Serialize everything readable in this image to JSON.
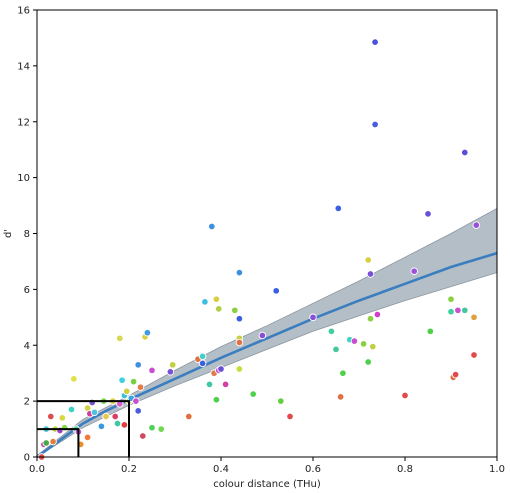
{
  "chart_data": {
    "type": "scatter",
    "title": "",
    "xlabel": "colour distance (THu)",
    "ylabel": "d'",
    "xlim": [
      0,
      1.0
    ],
    "ylim": [
      0,
      16
    ],
    "xticks": [
      "0.0",
      "0.2",
      "0.4",
      "0.6",
      "0.8",
      "1.0"
    ],
    "yticks": [
      "0",
      "2",
      "4",
      "6",
      "8",
      "10",
      "12",
      "14",
      "16"
    ],
    "grid": false,
    "fit_line": {
      "color": "#3a7ebf",
      "x": [
        0.0,
        0.05,
        0.1,
        0.15,
        0.2,
        0.3,
        0.4,
        0.5,
        0.6,
        0.7,
        0.8,
        0.9,
        1.0
      ],
      "y": [
        0.0,
        0.6,
        1.2,
        1.65,
        2.05,
        2.8,
        3.55,
        4.25,
        4.95,
        5.6,
        6.2,
        6.8,
        7.3
      ]
    },
    "ci_band": {
      "color": "#a7b3bd",
      "x": [
        0.0,
        0.1,
        0.2,
        0.3,
        0.4,
        0.5,
        0.6,
        0.7,
        0.8,
        0.9,
        1.0
      ],
      "lower": [
        0.0,
        1.05,
        1.85,
        2.55,
        3.2,
        3.85,
        4.5,
        5.05,
        5.6,
        6.1,
        6.6
      ],
      "upper": [
        0.05,
        1.35,
        2.2,
        3.1,
        3.95,
        4.7,
        5.5,
        6.3,
        7.15,
        8.0,
        8.9
      ]
    },
    "reference_boxes": [
      {
        "x": 0.2,
        "y": 2.0
      },
      {
        "x": 0.09,
        "y": 1.0
      }
    ],
    "points": [
      {
        "x": 0.01,
        "y": 0.0,
        "color": "#e04a4a"
      },
      {
        "x": 0.015,
        "y": 0.45,
        "color": "#cf3fb0"
      },
      {
        "x": 0.02,
        "y": 0.5,
        "color": "#4aa84a"
      },
      {
        "x": 0.02,
        "y": 1.0,
        "color": "#46c7d4"
      },
      {
        "x": 0.03,
        "y": 1.45,
        "color": "#d94f4f"
      },
      {
        "x": 0.035,
        "y": 0.55,
        "color": "#e57e3a"
      },
      {
        "x": 0.04,
        "y": 1.0,
        "color": "#c7d93b"
      },
      {
        "x": 0.05,
        "y": 0.95,
        "color": "#a23ec8"
      },
      {
        "x": 0.055,
        "y": 1.4,
        "color": "#d8d83f"
      },
      {
        "x": 0.06,
        "y": 1.05,
        "color": "#7fdc44"
      },
      {
        "x": 0.075,
        "y": 1.7,
        "color": "#3fd1c4"
      },
      {
        "x": 0.08,
        "y": 2.8,
        "color": "#e0e04a"
      },
      {
        "x": 0.085,
        "y": 1.0,
        "color": "#4fd08f"
      },
      {
        "x": 0.09,
        "y": 0.9,
        "color": "#c84fd8"
      },
      {
        "x": 0.095,
        "y": 0.45,
        "color": "#e8902a"
      },
      {
        "x": 0.11,
        "y": 1.75,
        "color": "#d0d040"
      },
      {
        "x": 0.11,
        "y": 0.7,
        "color": "#f07a3a"
      },
      {
        "x": 0.115,
        "y": 1.55,
        "color": "#cf3f98"
      },
      {
        "x": 0.12,
        "y": 1.95,
        "color": "#7a4fd8"
      },
      {
        "x": 0.125,
        "y": 1.6,
        "color": "#50c0e0"
      },
      {
        "x": 0.14,
        "y": 1.1,
        "color": "#3a9ae0"
      },
      {
        "x": 0.145,
        "y": 2.0,
        "color": "#6fd84f"
      },
      {
        "x": 0.15,
        "y": 1.45,
        "color": "#e7c84a"
      },
      {
        "x": 0.165,
        "y": 2.0,
        "color": "#d8d040"
      },
      {
        "x": 0.17,
        "y": 1.45,
        "color": "#d83f60"
      },
      {
        "x": 0.175,
        "y": 1.2,
        "color": "#40c8a0"
      },
      {
        "x": 0.18,
        "y": 1.9,
        "color": "#df5fc8"
      },
      {
        "x": 0.18,
        "y": 4.25,
        "color": "#d7d84a"
      },
      {
        "x": 0.185,
        "y": 2.75,
        "color": "#3ed0e0"
      },
      {
        "x": 0.19,
        "y": 1.15,
        "color": "#e04040"
      },
      {
        "x": 0.19,
        "y": 2.2,
        "color": "#3fbfd8"
      },
      {
        "x": 0.195,
        "y": 2.35,
        "color": "#d0d040"
      },
      {
        "x": 0.2,
        "y": 2.0,
        "color": "#e6e04a"
      },
      {
        "x": 0.205,
        "y": 2.1,
        "color": "#3aa0e0"
      },
      {
        "x": 0.21,
        "y": 2.7,
        "color": "#7acf40"
      },
      {
        "x": 0.215,
        "y": 2.0,
        "color": "#c84fd0"
      },
      {
        "x": 0.22,
        "y": 1.65,
        "color": "#4a5be0"
      },
      {
        "x": 0.22,
        "y": 3.3,
        "color": "#3e8fe0"
      },
      {
        "x": 0.225,
        "y": 2.5,
        "color": "#e87a4a"
      },
      {
        "x": 0.23,
        "y": 0.75,
        "color": "#d04a60"
      },
      {
        "x": 0.235,
        "y": 4.3,
        "color": "#d8d040"
      },
      {
        "x": 0.24,
        "y": 4.45,
        "color": "#3f9be0"
      },
      {
        "x": 0.25,
        "y": 3.1,
        "color": "#c84fd0"
      },
      {
        "x": 0.25,
        "y": 1.05,
        "color": "#4fd05a"
      },
      {
        "x": 0.27,
        "y": 1.0,
        "color": "#6fd84f"
      },
      {
        "x": 0.29,
        "y": 3.05,
        "color": "#7a4fd8"
      },
      {
        "x": 0.295,
        "y": 3.3,
        "color": "#c0d040"
      },
      {
        "x": 0.33,
        "y": 1.45,
        "color": "#e07040"
      },
      {
        "x": 0.35,
        "y": 3.5,
        "color": "#e07040"
      },
      {
        "x": 0.36,
        "y": 3.6,
        "color": "#3fd0c8"
      },
      {
        "x": 0.36,
        "y": 3.35,
        "color": "#3a5fe0"
      },
      {
        "x": 0.365,
        "y": 5.55,
        "color": "#3fbfe0"
      },
      {
        "x": 0.375,
        "y": 2.6,
        "color": "#40c8a0"
      },
      {
        "x": 0.38,
        "y": 8.25,
        "color": "#3f8fe0"
      },
      {
        "x": 0.385,
        "y": 3.0,
        "color": "#e07a4a"
      },
      {
        "x": 0.39,
        "y": 2.05,
        "color": "#4fd04a"
      },
      {
        "x": 0.39,
        "y": 5.65,
        "color": "#d8d040"
      },
      {
        "x": 0.395,
        "y": 5.3,
        "color": "#b0d040"
      },
      {
        "x": 0.395,
        "y": 3.1,
        "color": "#c84fd0"
      },
      {
        "x": 0.4,
        "y": 3.15,
        "color": "#6a4fd8"
      },
      {
        "x": 0.41,
        "y": 2.6,
        "color": "#d040a8"
      },
      {
        "x": 0.43,
        "y": 5.25,
        "color": "#8ad040"
      },
      {
        "x": 0.44,
        "y": 3.15,
        "color": "#c0e040"
      },
      {
        "x": 0.44,
        "y": 4.25,
        "color": "#c8d040"
      },
      {
        "x": 0.44,
        "y": 4.1,
        "color": "#e07040"
      },
      {
        "x": 0.44,
        "y": 4.95,
        "color": "#3a5fe0"
      },
      {
        "x": 0.44,
        "y": 6.6,
        "color": "#3f8fe0"
      },
      {
        "x": 0.47,
        "y": 2.25,
        "color": "#4fd04a"
      },
      {
        "x": 0.49,
        "y": 4.35,
        "color": "#8a4fd8"
      },
      {
        "x": 0.52,
        "y": 5.95,
        "color": "#3a5fe0"
      },
      {
        "x": 0.53,
        "y": 2.0,
        "color": "#60d040"
      },
      {
        "x": 0.55,
        "y": 1.45,
        "color": "#e04a4a"
      },
      {
        "x": 0.6,
        "y": 5.0,
        "color": "#8a4fd8"
      },
      {
        "x": 0.64,
        "y": 4.5,
        "color": "#40d0a0"
      },
      {
        "x": 0.65,
        "y": 3.85,
        "color": "#40c8a0"
      },
      {
        "x": 0.655,
        "y": 8.9,
        "color": "#3a5fe0"
      },
      {
        "x": 0.66,
        "y": 2.15,
        "color": "#e07040"
      },
      {
        "x": 0.665,
        "y": 3.0,
        "color": "#4fd04a"
      },
      {
        "x": 0.68,
        "y": 4.2,
        "color": "#3fd0c8"
      },
      {
        "x": 0.69,
        "y": 4.15,
        "color": "#c84fd0"
      },
      {
        "x": 0.71,
        "y": 4.05,
        "color": "#8ad040"
      },
      {
        "x": 0.72,
        "y": 7.05,
        "color": "#d8d040"
      },
      {
        "x": 0.72,
        "y": 3.4,
        "color": "#4fd04a"
      },
      {
        "x": 0.725,
        "y": 4.95,
        "color": "#8ad040"
      },
      {
        "x": 0.73,
        "y": 3.95,
        "color": "#c0d040"
      },
      {
        "x": 0.725,
        "y": 6.55,
        "color": "#7a4fd8"
      },
      {
        "x": 0.735,
        "y": 14.85,
        "color": "#4a50e0"
      },
      {
        "x": 0.735,
        "y": 11.9,
        "color": "#4a5be0"
      },
      {
        "x": 0.74,
        "y": 5.1,
        "color": "#d040c8"
      },
      {
        "x": 0.8,
        "y": 2.2,
        "color": "#e04a4a"
      },
      {
        "x": 0.82,
        "y": 6.65,
        "color": "#a04fd8"
      },
      {
        "x": 0.85,
        "y": 8.7,
        "color": "#6a4fd8"
      },
      {
        "x": 0.855,
        "y": 4.5,
        "color": "#4fd04a"
      },
      {
        "x": 0.9,
        "y": 5.65,
        "color": "#8ad040"
      },
      {
        "x": 0.9,
        "y": 5.2,
        "color": "#40d0a0"
      },
      {
        "x": 0.905,
        "y": 2.85,
        "color": "#e07040"
      },
      {
        "x": 0.91,
        "y": 2.95,
        "color": "#e04a4a"
      },
      {
        "x": 0.915,
        "y": 5.25,
        "color": "#c84fd0"
      },
      {
        "x": 0.93,
        "y": 10.9,
        "color": "#5a4fd8"
      },
      {
        "x": 0.93,
        "y": 5.25,
        "color": "#40c8a0"
      },
      {
        "x": 0.95,
        "y": 5.0,
        "color": "#e0a040"
      },
      {
        "x": 0.955,
        "y": 8.3,
        "color": "#9a4fd8"
      },
      {
        "x": 0.95,
        "y": 3.65,
        "color": "#e04a4a"
      }
    ]
  }
}
